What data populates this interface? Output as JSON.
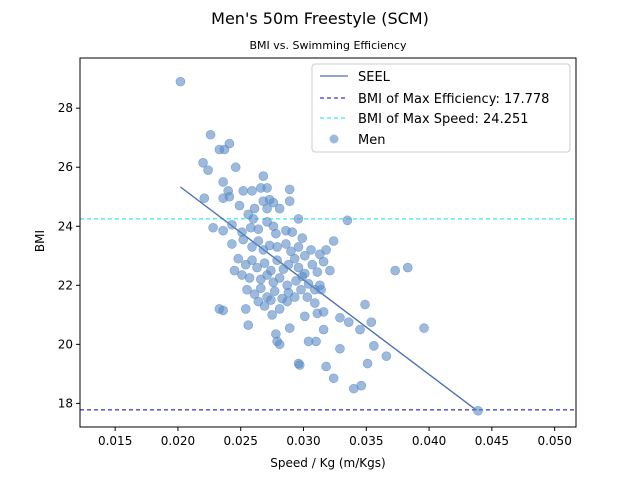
{
  "chart_data": {
    "type": "scatter",
    "title": "Men's 50m Freestyle (SCM)",
    "subtitle": "BMI vs. Swimming Efficiency",
    "xlabel": "Speed / Kg (m/Kgs)",
    "ylabel": "BMI",
    "xlim": [
      0.0122,
      0.0517
    ],
    "ylim": [
      17.2,
      29.7
    ],
    "xticks": [
      0.015,
      0.02,
      0.025,
      0.03,
      0.035,
      0.04,
      0.045,
      0.05
    ],
    "xtick_labels": [
      "0.015",
      "0.020",
      "0.025",
      "0.030",
      "0.035",
      "0.040",
      "0.045",
      "0.050"
    ],
    "yticks": [
      18,
      20,
      22,
      24,
      26,
      28
    ],
    "ytick_labels": [
      "18",
      "20",
      "22",
      "24",
      "26",
      "28"
    ],
    "grid": false,
    "legend_placement": "top-right",
    "colors": {
      "seel": "#4c72b0",
      "max_efficiency": "#0000cc",
      "max_speed": "#00e5ee",
      "men": "#5b8cc6"
    },
    "legend": [
      {
        "label": "SEEL",
        "style": "line",
        "color_key": "seel"
      },
      {
        "label": "BMI of Max Efficiency: 17.778",
        "style": "dashed",
        "color_key": "max_efficiency"
      },
      {
        "label": "BMI of Max Speed: 24.251",
        "style": "dashed",
        "color_key": "max_speed"
      },
      {
        "label": "Men",
        "style": "marker",
        "color_key": "men"
      }
    ],
    "seel_line": {
      "name": "SEEL",
      "x": [
        0.0202,
        0.0438
      ],
      "y": [
        25.33,
        17.76
      ]
    },
    "hlines": [
      {
        "name": "BMI of Max Efficiency",
        "y": 17.778,
        "color_key": "max_efficiency"
      },
      {
        "name": "BMI of Max Speed",
        "y": 24.251,
        "color_key": "max_speed"
      }
    ],
    "series": [
      {
        "name": "Men",
        "points": [
          [
            0.0202,
            28.9
          ],
          [
            0.0226,
            27.1
          ],
          [
            0.0241,
            26.8
          ],
          [
            0.0233,
            26.6
          ],
          [
            0.0237,
            26.6
          ],
          [
            0.022,
            26.15
          ],
          [
            0.0224,
            25.9
          ],
          [
            0.0246,
            26.0
          ],
          [
            0.0268,
            25.7
          ],
          [
            0.0236,
            25.5
          ],
          [
            0.0252,
            25.2
          ],
          [
            0.024,
            25.2
          ],
          [
            0.0259,
            25.2
          ],
          [
            0.0266,
            25.3
          ],
          [
            0.0271,
            25.3
          ],
          [
            0.0289,
            25.25
          ],
          [
            0.0221,
            24.95
          ],
          [
            0.0236,
            24.95
          ],
          [
            0.0241,
            25.0
          ],
          [
            0.0249,
            24.7
          ],
          [
            0.0256,
            24.4
          ],
          [
            0.0261,
            24.6
          ],
          [
            0.0268,
            24.85
          ],
          [
            0.0273,
            24.9
          ],
          [
            0.0271,
            24.6
          ],
          [
            0.0276,
            24.8
          ],
          [
            0.0281,
            24.6
          ],
          [
            0.0289,
            24.85
          ],
          [
            0.026,
            24.25
          ],
          [
            0.0296,
            24.25
          ],
          [
            0.0335,
            24.2
          ],
          [
            0.0228,
            23.95
          ],
          [
            0.0236,
            23.85
          ],
          [
            0.0243,
            24.05
          ],
          [
            0.0251,
            23.8
          ],
          [
            0.0258,
            23.95
          ],
          [
            0.0264,
            23.9
          ],
          [
            0.0271,
            24.15
          ],
          [
            0.0276,
            24.0
          ],
          [
            0.0278,
            23.75
          ],
          [
            0.0286,
            23.85
          ],
          [
            0.0291,
            23.8
          ],
          [
            0.0299,
            23.6
          ],
          [
            0.0243,
            23.4
          ],
          [
            0.0252,
            23.55
          ],
          [
            0.0259,
            23.3
          ],
          [
            0.0264,
            23.5
          ],
          [
            0.0268,
            23.2
          ],
          [
            0.0273,
            23.35
          ],
          [
            0.0279,
            23.3
          ],
          [
            0.0286,
            23.4
          ],
          [
            0.029,
            23.15
          ],
          [
            0.0296,
            23.3
          ],
          [
            0.0301,
            23.0
          ],
          [
            0.0306,
            23.2
          ],
          [
            0.0313,
            23.05
          ],
          [
            0.0318,
            23.2
          ],
          [
            0.0324,
            23.5
          ],
          [
            0.0248,
            22.9
          ],
          [
            0.0254,
            22.7
          ],
          [
            0.0259,
            22.85
          ],
          [
            0.0263,
            22.6
          ],
          [
            0.0269,
            22.75
          ],
          [
            0.0274,
            22.5
          ],
          [
            0.0279,
            22.85
          ],
          [
            0.0284,
            22.55
          ],
          [
            0.0288,
            22.7
          ],
          [
            0.0293,
            22.9
          ],
          [
            0.0296,
            22.6
          ],
          [
            0.0301,
            22.4
          ],
          [
            0.0307,
            22.7
          ],
          [
            0.0311,
            22.45
          ],
          [
            0.0316,
            22.8
          ],
          [
            0.0321,
            22.5
          ],
          [
            0.0245,
            22.5
          ],
          [
            0.0251,
            22.35
          ],
          [
            0.0257,
            22.25
          ],
          [
            0.0266,
            22.2
          ],
          [
            0.0271,
            22.35
          ],
          [
            0.0276,
            22.1
          ],
          [
            0.0281,
            22.25
          ],
          [
            0.0287,
            22.0
          ],
          [
            0.0294,
            22.15
          ],
          [
            0.0299,
            22.3
          ],
          [
            0.0304,
            22.05
          ],
          [
            0.0309,
            21.85
          ],
          [
            0.0313,
            22.0
          ],
          [
            0.0255,
            21.85
          ],
          [
            0.0261,
            21.7
          ],
          [
            0.0266,
            21.9
          ],
          [
            0.0271,
            21.6
          ],
          [
            0.0277,
            21.8
          ],
          [
            0.0283,
            21.55
          ],
          [
            0.0288,
            21.75
          ],
          [
            0.0293,
            21.6
          ],
          [
            0.0298,
            21.85
          ],
          [
            0.0303,
            21.6
          ],
          [
            0.0309,
            21.4
          ],
          [
            0.0314,
            21.85
          ],
          [
            0.0264,
            21.45
          ],
          [
            0.0269,
            21.3
          ],
          [
            0.0274,
            21.5
          ],
          [
            0.0281,
            21.2
          ],
          [
            0.0287,
            21.45
          ],
          [
            0.0233,
            21.2
          ],
          [
            0.0236,
            21.15
          ],
          [
            0.0254,
            21.2
          ],
          [
            0.0275,
            21.0
          ],
          [
            0.0301,
            20.95
          ],
          [
            0.0311,
            21.05
          ],
          [
            0.0316,
            21.1
          ],
          [
            0.0329,
            20.9
          ],
          [
            0.0336,
            20.75
          ],
          [
            0.0349,
            21.35
          ],
          [
            0.0354,
            20.75
          ],
          [
            0.0256,
            20.65
          ],
          [
            0.0289,
            20.55
          ],
          [
            0.0316,
            20.5
          ],
          [
            0.0345,
            20.5
          ],
          [
            0.0278,
            20.35
          ],
          [
            0.0279,
            20.1
          ],
          [
            0.0281,
            20.0
          ],
          [
            0.0304,
            20.1
          ],
          [
            0.031,
            20.1
          ],
          [
            0.0329,
            19.85
          ],
          [
            0.0356,
            19.95
          ],
          [
            0.0366,
            19.6
          ],
          [
            0.0296,
            19.35
          ],
          [
            0.0297,
            19.3
          ],
          [
            0.0318,
            19.25
          ],
          [
            0.0351,
            19.35
          ],
          [
            0.0324,
            18.85
          ],
          [
            0.034,
            18.5
          ],
          [
            0.0346,
            18.6
          ],
          [
            0.0373,
            22.5
          ],
          [
            0.0383,
            22.6
          ],
          [
            0.0396,
            20.55
          ],
          [
            0.0439,
            17.75
          ]
        ]
      }
    ]
  }
}
